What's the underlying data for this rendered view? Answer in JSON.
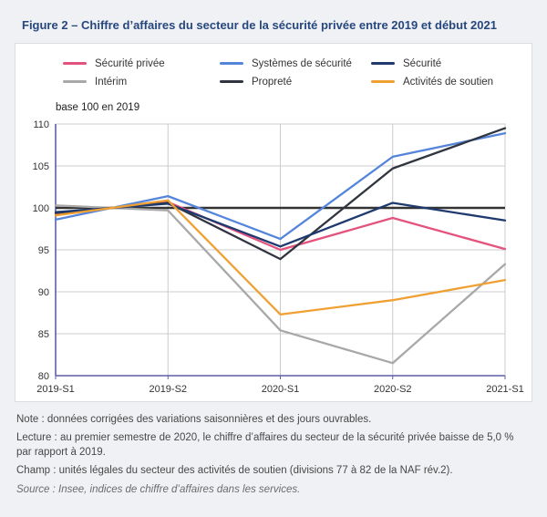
{
  "title": "Figure 2 – Chiffre d’affaires du secteur de la sécurité privée entre 2019 et début 2021",
  "chart_data": {
    "type": "line",
    "categories": [
      "2019-S1",
      "2019-S2",
      "2020-S1",
      "2020-S2",
      "2021-S1"
    ],
    "series": [
      {
        "name": "Sécurité privée",
        "color": "#e4537d",
        "values": [
          99.3,
          100.7,
          95.0,
          98.8,
          95.1
        ]
      },
      {
        "name": "Intérim",
        "color": "#a8a8a8",
        "values": [
          100.3,
          99.7,
          85.4,
          81.5,
          93.3
        ]
      },
      {
        "name": "Systèmes de sécurité",
        "color": "#5585db",
        "values": [
          98.6,
          101.4,
          96.3,
          106.1,
          108.9
        ]
      },
      {
        "name": "Propreté",
        "color": "#30353f",
        "values": [
          99.4,
          100.6,
          93.9,
          104.7,
          109.5
        ]
      },
      {
        "name": "Sécurité",
        "color": "#1e3a6e",
        "values": [
          99.5,
          100.5,
          95.4,
          100.6,
          98.5
        ]
      },
      {
        "name": "Activités de soutien",
        "color": "#f0a033",
        "values": [
          99.1,
          100.9,
          87.3,
          89.0,
          91.4
        ]
      }
    ],
    "unit_note": "base 100 en 2019",
    "ylim": [
      80,
      110
    ],
    "ytick_step": 5,
    "reference_line": 100,
    "grid": true,
    "legend_position": "top",
    "xlabel": "",
    "ylabel": ""
  },
  "notes": {
    "note": "Note : données corrigées des variations saisonnières et des jours ouvrables.",
    "lecture": "Lecture : au premier semestre de 2020, le chiffre d’affaires du secteur de la sécurité privée baisse de 5,0 % par rapport à 2019.",
    "champ": "Champ : unités légales du secteur des activités de soutien (divisions 77 à 82 de la NAF rév.2).",
    "source": "Source : Insee, indices de chiffre d’affaires dans les services."
  },
  "colors": {
    "grid": "#cccccc",
    "plot_border": "#cccccc",
    "axis": "#5e5fa9",
    "reference": "#333333",
    "title": "#26477e"
  }
}
